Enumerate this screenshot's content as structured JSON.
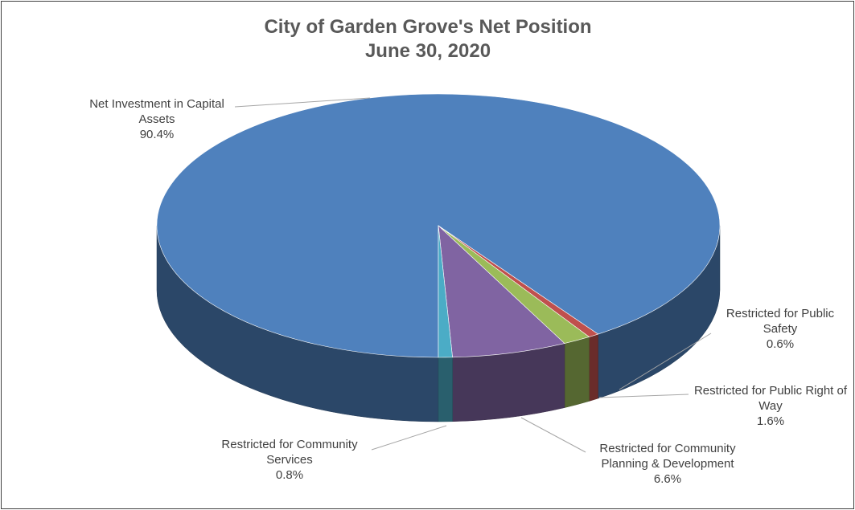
{
  "chart_data": {
    "type": "pie",
    "title": "City of Garden Grove's Net Position",
    "subtitle": "June 30, 2020",
    "categories": [
      "Net Investment in Capital Assets",
      "Restricted for Public Safety",
      "Restricted for Public Right of Way",
      "Restricted for Community Planning & Development",
      "Restricted for Community Services"
    ],
    "values": [
      90.4,
      0.6,
      1.6,
      6.6,
      0.8
    ],
    "value_labels": [
      "90.4%",
      "0.6%",
      "1.6%",
      "6.6%",
      "0.8%"
    ],
    "colors": [
      "#4f81bd",
      "#c0504d",
      "#9bbb59",
      "#8064a2",
      "#4bacc6"
    ]
  }
}
